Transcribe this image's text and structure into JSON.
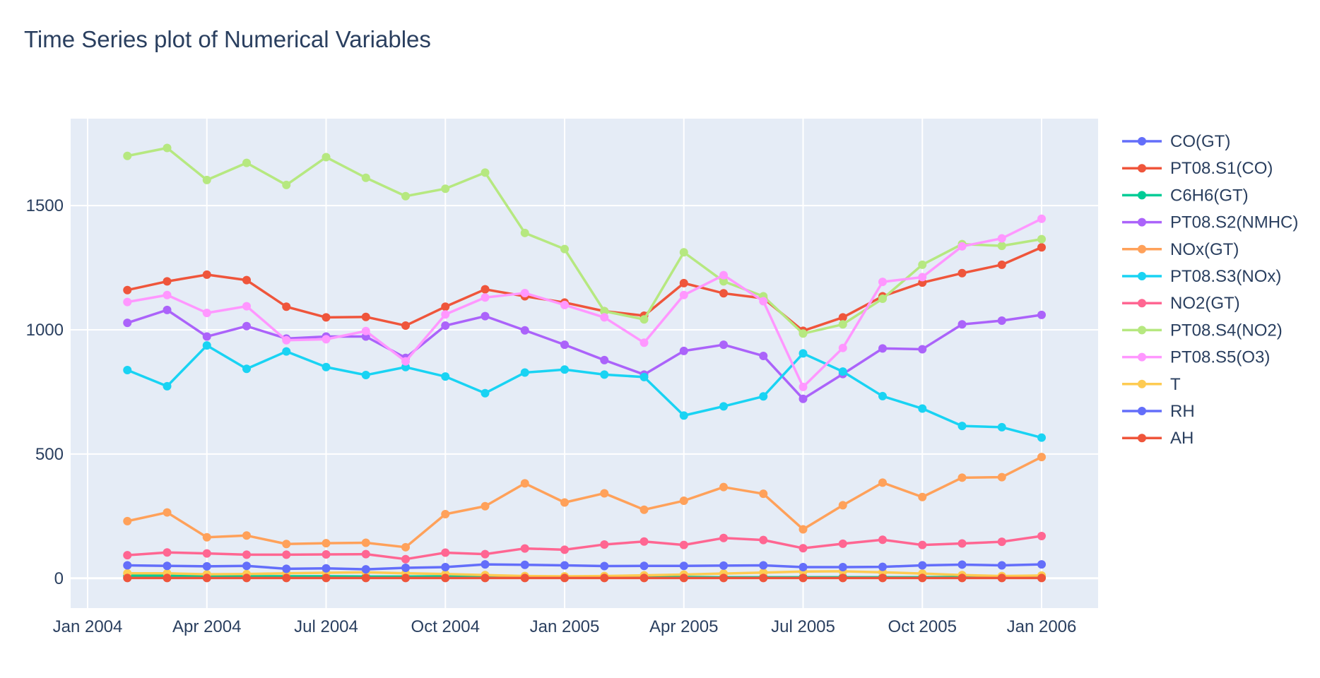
{
  "chart_data": {
    "type": "line",
    "title": "Time Series plot of Numerical Variables",
    "xlabel": "",
    "ylabel": "",
    "ylim": [
      -120,
      1850
    ],
    "grid": true,
    "legend": "right",
    "x_ticks": [
      {
        "label": "Jan 2004",
        "month": 0
      },
      {
        "label": "Apr 2004",
        "month": 3
      },
      {
        "label": "Jul 2004",
        "month": 6
      },
      {
        "label": "Oct 2004",
        "month": 9
      },
      {
        "label": "Jan 2005",
        "month": 12
      },
      {
        "label": "Apr 2005",
        "month": 15
      },
      {
        "label": "Jul 2005",
        "month": 18
      },
      {
        "label": "Oct 2005",
        "month": 21
      },
      {
        "label": "Jan 2006",
        "month": 24
      }
    ],
    "y_ticks": [
      0,
      500,
      1000,
      1500
    ],
    "x": [
      "2004-02",
      "2004-03",
      "2004-04",
      "2004-05",
      "2004-06",
      "2004-07",
      "2004-08",
      "2004-09",
      "2004-10",
      "2004-11",
      "2004-12",
      "2005-01",
      "2005-02",
      "2005-03",
      "2005-04",
      "2005-05",
      "2005-06",
      "2005-07",
      "2005-08",
      "2005-09",
      "2005-10",
      "2005-11",
      "2005-12",
      "2006-01"
    ],
    "x_month_index": [
      1,
      2,
      3,
      4,
      5,
      6,
      7,
      8,
      9,
      10,
      11,
      12,
      13,
      14,
      15,
      16,
      17,
      18,
      19,
      20,
      21,
      22,
      23,
      24
    ],
    "series": [
      {
        "name": "CO(GT)",
        "color": "#636efa",
        "values": [
          2,
          2,
          2,
          2,
          2,
          2,
          2,
          2,
          2,
          2,
          2,
          2,
          2,
          2,
          2,
          2,
          2,
          2,
          2,
          2,
          2,
          2,
          2,
          2
        ]
      },
      {
        "name": "PT08.S1(CO)",
        "color": "#ef553b",
        "values": [
          1160,
          1195,
          1222,
          1200,
          1093,
          1050,
          1052,
          1017,
          1093,
          1163,
          1135,
          1110,
          1075,
          1057,
          1188,
          1147,
          1127,
          996,
          1050,
          1135,
          1190,
          1228,
          1262,
          1332
        ]
      },
      {
        "name": "C6H6(GT)",
        "color": "#00cc96",
        "values": [
          10,
          10,
          8,
          8,
          8,
          8,
          7,
          7,
          8,
          8,
          5,
          4,
          4,
          4,
          5,
          4,
          4,
          4,
          4,
          4,
          4,
          5,
          5,
          6
        ]
      },
      {
        "name": "PT08.S2(NMHC)",
        "color": "#ab63fa",
        "values": [
          1028,
          1080,
          973,
          1015,
          965,
          973,
          973,
          887,
          1017,
          1055,
          998,
          940,
          878,
          820,
          915,
          940,
          895,
          722,
          822,
          925,
          922,
          1022,
          1037,
          1060
        ]
      },
      {
        "name": "NOx(GT)",
        "color": "#ffa15a",
        "values": [
          230,
          265,
          165,
          172,
          138,
          141,
          143,
          125,
          258,
          290,
          382,
          305,
          342,
          276,
          312,
          367,
          340,
          197,
          294,
          385,
          327,
          405,
          407,
          488
        ]
      },
      {
        "name": "PT08.S3(NOx)",
        "color": "#19d3f3",
        "values": [
          838,
          773,
          937,
          843,
          913,
          850,
          818,
          850,
          812,
          745,
          828,
          840,
          820,
          810,
          655,
          692,
          732,
          905,
          832,
          733,
          683,
          613,
          608,
          566
        ]
      },
      {
        "name": "NO2(GT)",
        "color": "#ff6692",
        "values": [
          93,
          104,
          100,
          95,
          95,
          96,
          97,
          77,
          103,
          97,
          120,
          115,
          136,
          148,
          134,
          162,
          154,
          121,
          139,
          155,
          134,
          140,
          147,
          170
        ]
      },
      {
        "name": "PT08.S4(NO2)",
        "color": "#b6e880",
        "values": [
          1700,
          1732,
          1603,
          1672,
          1583,
          1695,
          1612,
          1538,
          1568,
          1633,
          1390,
          1325,
          1075,
          1042,
          1312,
          1195,
          1135,
          985,
          1022,
          1125,
          1262,
          1345,
          1338,
          1365
        ]
      },
      {
        "name": "PT08.S5(O3)",
        "color": "#ff97ff",
        "values": [
          1112,
          1140,
          1068,
          1095,
          958,
          962,
          995,
          873,
          1062,
          1130,
          1148,
          1100,
          1050,
          948,
          1140,
          1220,
          1115,
          770,
          927,
          1193,
          1212,
          1336,
          1368,
          1447
        ]
      },
      {
        "name": "T",
        "color": "#fecb52",
        "values": [
          20,
          20,
          16,
          17,
          20,
          22,
          24,
          20,
          17,
          13,
          9,
          8,
          9,
          12,
          15,
          19,
          23,
          27,
          28,
          24,
          19,
          13,
          9,
          11
        ]
      },
      {
        "name": "RH",
        "color": "#636efa",
        "values": [
          52,
          50,
          48,
          50,
          38,
          40,
          36,
          42,
          45,
          56,
          54,
          52,
          49,
          50,
          50,
          51,
          52,
          45,
          45,
          46,
          52,
          55,
          52,
          56
        ]
      },
      {
        "name": "AH",
        "color": "#ef553b",
        "values": [
          1,
          1,
          1,
          1,
          1,
          1,
          1,
          1,
          1,
          1,
          1,
          1,
          1,
          1,
          1,
          1,
          1,
          1,
          1,
          1,
          1,
          1,
          1,
          1
        ]
      }
    ]
  }
}
